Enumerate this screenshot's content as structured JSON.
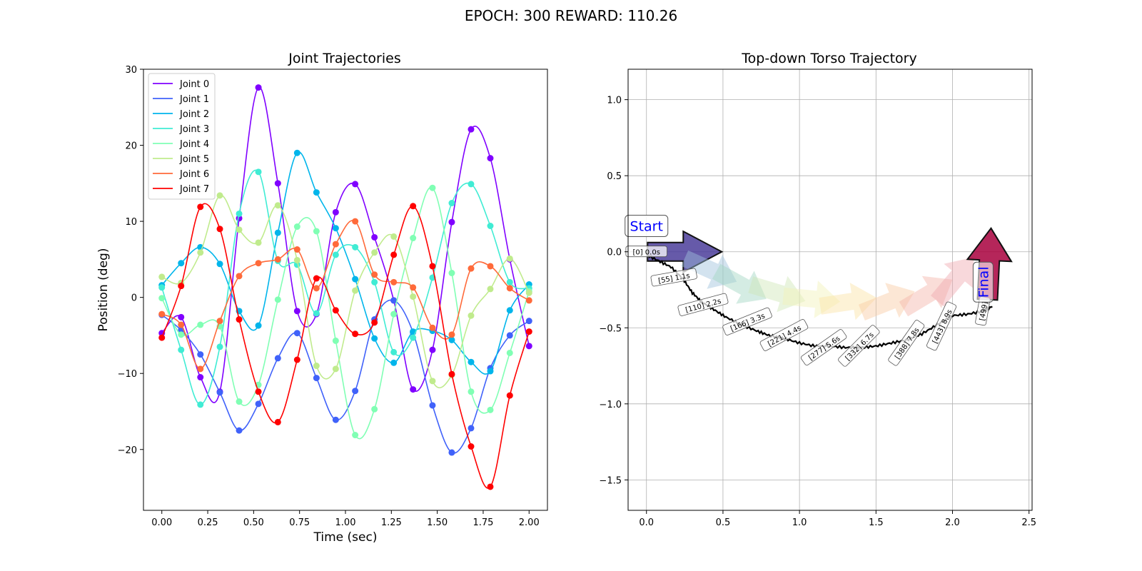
{
  "figure_title": "EPOCH: 300 REWARD: 110.26",
  "chart_data": [
    {
      "type": "line",
      "title": "Joint Trajectories",
      "xlabel": "Time (sec)",
      "ylabel": "Position (deg)",
      "xlim": [
        -0.1,
        2.1
      ],
      "ylim": [
        -28,
        30
      ],
      "x_ticks": [
        "0.00",
        "0.25",
        "0.50",
        "0.75",
        "1.00",
        "1.25",
        "1.50",
        "1.75",
        "2.00"
      ],
      "x_tick_values": [
        0,
        0.25,
        0.5,
        0.75,
        1.0,
        1.25,
        1.5,
        1.75,
        2.0
      ],
      "y_ticks": [
        "−20",
        "−10",
        "0",
        "10",
        "20",
        "30"
      ],
      "y_tick_values": [
        -20,
        -10,
        0,
        10,
        20,
        30
      ],
      "grid": false,
      "legend_position": "top-left",
      "marker_x": [
        0,
        0.105,
        0.21,
        0.316,
        0.421,
        0.526,
        0.632,
        0.737,
        0.842,
        0.947,
        1.053,
        1.158,
        1.263,
        1.368,
        1.474,
        1.579,
        1.684,
        1.789,
        1.895,
        2.0
      ],
      "series": [
        {
          "name": "Joint 0",
          "color": "#8000ff",
          "values": [
            -4.7,
            -2.6,
            -10.5,
            -12.4,
            10.4,
            27.6,
            15.0,
            -1.8,
            -2.2,
            11.2,
            14.9,
            7.9,
            -0.4,
            -12.1,
            -6.9,
            9.9,
            22.1,
            18.3,
            5.0,
            -6.4
          ]
        },
        {
          "name": "Joint 1",
          "color": "#4062fa",
          "values": [
            -2.3,
            -4.3,
            -7.5,
            -12.5,
            -17.5,
            -14.0,
            -8.0,
            -4.7,
            -10.6,
            -16.1,
            -12.3,
            -2.9,
            -0.4,
            -4.6,
            -14.2,
            -20.4,
            -17.2,
            -9.3,
            -5.0,
            -3.1
          ]
        },
        {
          "name": "Joint 2",
          "color": "#00b5eb",
          "values": [
            1.6,
            4.5,
            6.6,
            4.4,
            -1.8,
            -3.7,
            8.5,
            19.0,
            13.8,
            9.1,
            2.4,
            -5.4,
            -8.6,
            -4.5,
            -4.4,
            -5.6,
            -8.5,
            -9.7,
            -1.7,
            1.7
          ]
        },
        {
          "name": "Joint 3",
          "color": "#40ecd4",
          "values": [
            1.3,
            -6.9,
            -14.1,
            -6.5,
            11.0,
            16.5,
            4.8,
            4.3,
            -2.1,
            5.6,
            6.6,
            2.0,
            -7.2,
            -5.3,
            2.6,
            12.4,
            14.9,
            9.4,
            2.0,
            1.2
          ]
        },
        {
          "name": "Joint 4",
          "color": "#80ffb4",
          "values": [
            -0.1,
            -4.9,
            -3.6,
            -3.8,
            -13.7,
            -11.5,
            -0.3,
            9.3,
            8.7,
            -5.7,
            -18.1,
            -14.7,
            -2.2,
            7.8,
            14.4,
            3.2,
            -12.4,
            -14.8,
            -7.3,
            0.8
          ]
        },
        {
          "name": "Joint 5",
          "color": "#c0eb8d",
          "values": [
            2.7,
            1.9,
            5.9,
            13.4,
            8.9,
            7.2,
            12.1,
            4.9,
            -9.0,
            -9.4,
            0.9,
            5.9,
            8.0,
            0.1,
            -11.0,
            -10.2,
            -2.4,
            1.1,
            5.1,
            0.6
          ]
        },
        {
          "name": "Joint 6",
          "color": "#ff6a3a",
          "values": [
            -2.2,
            -3.6,
            -9.4,
            -3.1,
            2.8,
            4.5,
            5.0,
            6.3,
            1.2,
            7.0,
            10.0,
            3.0,
            2.0,
            1.3,
            -4.0,
            -4.9,
            3.8,
            4.1,
            1.2,
            -0.4
          ]
        },
        {
          "name": "Joint 7",
          "color": "#ff0000",
          "values": [
            -5.3,
            1.5,
            11.9,
            9.0,
            -2.9,
            -12.4,
            -16.4,
            -8.2,
            2.5,
            -1.7,
            -4.8,
            -3.3,
            5.6,
            12.0,
            4.1,
            -10.1,
            -19.6,
            -24.9,
            -12.9,
            -4.5
          ]
        }
      ]
    },
    {
      "type": "line",
      "title": "Top-down Torso Trajectory",
      "xlim": [
        -0.12,
        2.52
      ],
      "ylim": [
        -1.7,
        1.2
      ],
      "x_ticks": [
        "0.0",
        "0.5",
        "1.0",
        "1.5",
        "2.0",
        "2.5"
      ],
      "x_tick_values": [
        0,
        0.5,
        1.0,
        1.5,
        2.0,
        2.5
      ],
      "y_ticks": [
        "−1.5",
        "−1.0",
        "−0.5",
        "0.0",
        "0.5",
        "1.0"
      ],
      "y_tick_values": [
        -1.5,
        -1.0,
        -0.5,
        0.0,
        0.5,
        1.0
      ],
      "grid": true,
      "path": {
        "x": [
          0.0,
          0.08,
          0.16,
          0.24,
          0.3,
          0.36,
          0.44,
          0.52,
          0.62,
          0.72,
          0.8,
          0.9,
          1.0,
          1.1,
          1.2,
          1.3,
          1.4,
          1.5,
          1.6,
          1.7,
          1.8,
          1.9,
          2.0,
          2.1,
          2.2,
          2.26
        ],
        "y": [
          -0.02,
          -0.06,
          -0.1,
          -0.18,
          -0.27,
          -0.33,
          -0.38,
          -0.43,
          -0.48,
          -0.52,
          -0.55,
          -0.57,
          -0.6,
          -0.62,
          -0.62,
          -0.63,
          -0.63,
          -0.62,
          -0.6,
          -0.58,
          -0.54,
          -0.48,
          -0.42,
          -0.41,
          -0.39,
          -0.36
        ]
      },
      "labels": [
        "[0] 0.0s",
        "[55] 1.1s",
        "[110] 2.2s",
        "[166] 3.3s",
        "[221] 4.4s",
        "[277] 5.6s",
        "[332] 6.7s",
        "[388] 7.8s",
        "[443] 8.9s",
        "[499]"
      ],
      "label_points": [
        [
          0.0,
          0.0
        ],
        [
          0.18,
          -0.17
        ],
        [
          0.37,
          -0.35
        ],
        [
          0.66,
          -0.46
        ],
        [
          0.9,
          -0.55
        ],
        [
          1.16,
          -0.63
        ],
        [
          1.39,
          -0.62
        ],
        [
          1.7,
          -0.6
        ],
        [
          1.93,
          -0.49
        ],
        [
          2.2,
          -0.39
        ]
      ],
      "start_text": "Start",
      "final_text": "Final",
      "start_color": "#4b3d9a",
      "final_color": "#a8003d"
    }
  ]
}
